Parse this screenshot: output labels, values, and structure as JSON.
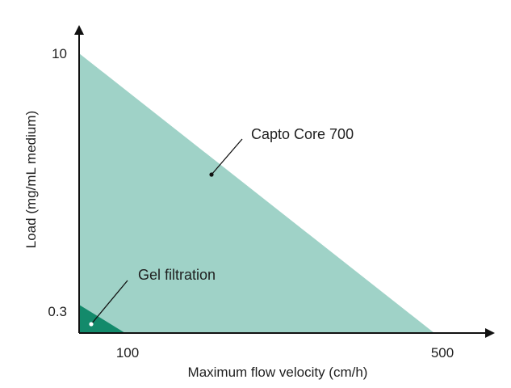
{
  "chart_data": {
    "type": "area",
    "title": "",
    "xlabel": "Maximum flow velocity (cm/h)",
    "ylabel": "Load (mg/mL medium)",
    "x_ticks": [
      "100",
      "500"
    ],
    "y_ticks": [
      "10",
      "0.3"
    ],
    "series": [
      {
        "name": "Capto Core 700",
        "color": "#9fd2c7",
        "max_load": 10,
        "max_flow_velocity": 500
      },
      {
        "name": "Gel filtration",
        "color": "#138a6b",
        "max_load": 0.3,
        "max_flow_velocity": 100
      }
    ],
    "annotations": [
      {
        "text": "Capto Core 700",
        "target": "Capto Core 700"
      },
      {
        "text": "Gel filtration",
        "target": "Gel filtration"
      }
    ],
    "axis_color": "#111111",
    "grid": false,
    "legend": "none"
  }
}
